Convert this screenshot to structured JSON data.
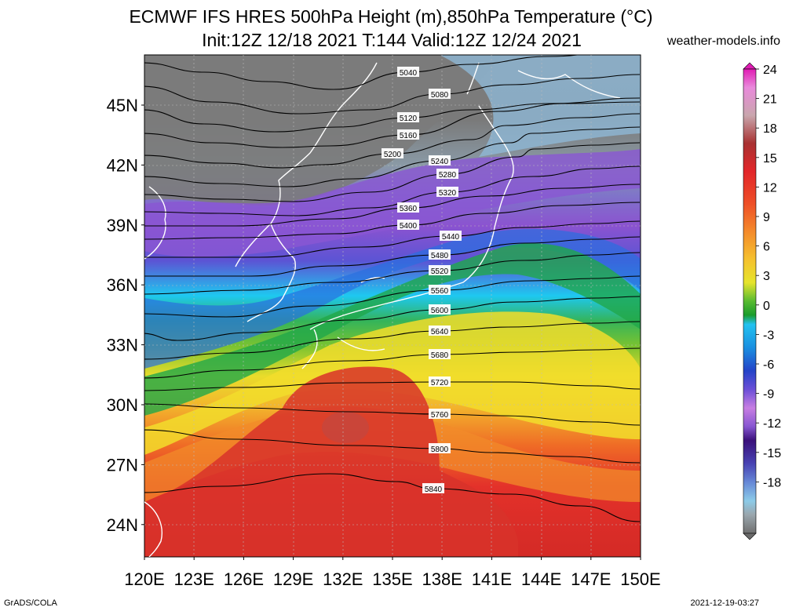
{
  "header": {
    "title_line1": "ECMWF IFS HRES 500hPa Height (m),850hPa Temperature (°C)",
    "title_line2": "Init:12Z 12/18 2021 T:144 Valid:12Z 12/24 2021",
    "site": "weather-models.info"
  },
  "footer": {
    "left": "GrADS/COLA",
    "right": "2021-12-19-03:27"
  },
  "map": {
    "lat_labels": [
      "45N",
      "42N",
      "39N",
      "36N",
      "33N",
      "30N",
      "27N",
      "24N"
    ],
    "lon_labels": [
      "120E",
      "123E",
      "126E",
      "129E",
      "132E",
      "135E",
      "138E",
      "141E",
      "144E",
      "147E",
      "150E"
    ],
    "contours": [
      {
        "value": "5040",
        "points": [
          [
            180,
            80
          ],
          [
            260,
            92
          ],
          [
            340,
            104
          ],
          [
            425,
            114
          ],
          [
            520,
            92
          ],
          [
            600,
            82
          ],
          [
            700,
            72
          ],
          [
            815,
            60
          ]
        ]
      },
      {
        "value": "5080",
        "points": [
          [
            180,
            110
          ],
          [
            270,
            130
          ],
          [
            380,
            145
          ],
          [
            470,
            140
          ],
          [
            560,
            120
          ],
          [
            650,
            108
          ],
          [
            740,
            100
          ],
          [
            815,
            95
          ]
        ]
      },
      {
        "value": "5120",
        "points": [
          [
            180,
            140
          ],
          [
            260,
            158
          ],
          [
            350,
            168
          ],
          [
            430,
            162
          ],
          [
            520,
            150
          ],
          [
            600,
            140
          ],
          [
            700,
            132
          ],
          [
            815,
            125
          ]
        ]
      },
      {
        "value": "5160",
        "points": [
          [
            180,
            170
          ],
          [
            270,
            182
          ],
          [
            360,
            188
          ],
          [
            420,
            186
          ],
          [
            520,
            172
          ],
          [
            635,
            142
          ],
          [
            720,
            132
          ],
          [
            815,
            130
          ]
        ]
      },
      {
        "value": "5200",
        "points": [
          [
            180,
            198
          ],
          [
            280,
            208
          ],
          [
            360,
            214
          ],
          [
            410,
            210
          ],
          [
            500,
            196
          ],
          [
            600,
            178
          ],
          [
            645,
            160
          ],
          [
            740,
            150
          ],
          [
            815,
            145
          ]
        ]
      },
      {
        "value": "5240",
        "points": [
          [
            180,
            225
          ],
          [
            280,
            234
          ],
          [
            365,
            238
          ],
          [
            450,
            228
          ],
          [
            560,
            205
          ],
          [
            650,
            182
          ],
          [
            678,
            170
          ],
          [
            760,
            165
          ],
          [
            815,
            162
          ]
        ]
      },
      {
        "value": "5280",
        "points": [
          [
            180,
            248
          ],
          [
            290,
            254
          ],
          [
            372,
            257
          ],
          [
            470,
            245
          ],
          [
            570,
            222
          ],
          [
            660,
            200
          ],
          [
            680,
            190
          ],
          [
            760,
            185
          ],
          [
            815,
            182
          ]
        ]
      },
      {
        "value": "5320",
        "points": [
          [
            180,
            270
          ],
          [
            280,
            272
          ],
          [
            374,
            275
          ],
          [
            470,
            265
          ],
          [
            570,
            245
          ],
          [
            680,
            225
          ],
          [
            760,
            215
          ],
          [
            815,
            212
          ]
        ]
      },
      {
        "value": "5360",
        "points": [
          [
            180,
            288
          ],
          [
            300,
            288
          ],
          [
            426,
            279
          ],
          [
            520,
            265
          ],
          [
            620,
            250
          ],
          [
            720,
            240
          ],
          [
            815,
            235
          ]
        ]
      },
      {
        "value": "5400",
        "points": [
          [
            180,
            305
          ],
          [
            300,
            303
          ],
          [
            426,
            298
          ],
          [
            520,
            287
          ],
          [
            620,
            272
          ],
          [
            720,
            262
          ],
          [
            815,
            258
          ]
        ]
      },
      {
        "value": "5440",
        "points": [
          [
            180,
            328
          ],
          [
            330,
            328
          ],
          [
            460,
            315
          ],
          [
            574,
            301
          ],
          [
            670,
            290
          ],
          [
            760,
            285
          ],
          [
            815,
            282
          ]
        ]
      },
      {
        "value": "5480",
        "points": [
          [
            180,
            352
          ],
          [
            320,
            352
          ],
          [
            426,
            339
          ],
          [
            560,
            325
          ],
          [
            670,
            310
          ],
          [
            760,
            305
          ],
          [
            815,
            302
          ]
        ]
      },
      {
        "value": "5520",
        "points": [
          [
            180,
            375
          ],
          [
            310,
            370
          ],
          [
            426,
            360
          ],
          [
            560,
            345
          ],
          [
            668,
            332
          ],
          [
            760,
            325
          ],
          [
            815,
            322
          ]
        ]
      },
      {
        "value": "5560",
        "points": [
          [
            180,
            400
          ],
          [
            288,
            404
          ],
          [
            400,
            390
          ],
          [
            560,
            370
          ],
          [
            678,
            358
          ],
          [
            760,
            355
          ],
          [
            815,
            352
          ]
        ]
      },
      {
        "value": "5600",
        "points": [
          [
            180,
            425
          ],
          [
            226,
            434
          ],
          [
            320,
            424
          ],
          [
            450,
            408
          ],
          [
            560,
            395
          ],
          [
            658,
            385
          ],
          [
            760,
            380
          ],
          [
            815,
            378
          ]
        ]
      },
      {
        "value": "5640",
        "points": [
          [
            180,
            458
          ],
          [
            300,
            450
          ],
          [
            450,
            432
          ],
          [
            560,
            422
          ],
          [
            647,
            417
          ],
          [
            760,
            412
          ],
          [
            815,
            410
          ]
        ]
      },
      {
        "value": "5680",
        "points": [
          [
            180,
            482
          ],
          [
            300,
            472
          ],
          [
            450,
            460
          ],
          [
            560,
            452
          ],
          [
            664,
            449
          ],
          [
            760,
            446
          ],
          [
            815,
            444
          ]
        ]
      },
      {
        "value": "5720",
        "points": [
          [
            180,
            498
          ],
          [
            300,
            494
          ],
          [
            450,
            488
          ],
          [
            560,
            487
          ],
          [
            648,
            487
          ],
          [
            760,
            492
          ],
          [
            815,
            496
          ]
        ]
      },
      {
        "value": "5760",
        "points": [
          [
            180,
            515
          ],
          [
            300,
            520
          ],
          [
            450,
            525
          ],
          [
            560,
            528
          ],
          [
            637,
            530
          ],
          [
            760,
            538
          ],
          [
            815,
            542
          ]
        ]
      },
      {
        "value": "5800",
        "points": [
          [
            180,
            548
          ],
          [
            300,
            560
          ],
          [
            450,
            568
          ],
          [
            560,
            572
          ],
          [
            627,
            577
          ],
          [
            720,
            582
          ],
          [
            815,
            590
          ]
        ]
      },
      {
        "value": "5840",
        "points": [
          [
            180,
            628
          ],
          [
            280,
            620
          ],
          [
            420,
            604
          ],
          [
            505,
            614
          ],
          [
            552,
            623
          ],
          [
            650,
            630
          ],
          [
            740,
            645
          ],
          [
            815,
            665
          ]
        ]
      }
    ]
  },
  "colorbar": {
    "labels": [
      "24",
      "21",
      "18",
      "15",
      "12",
      "9",
      "6",
      "3",
      "0",
      "-3",
      "-6",
      "-9",
      "-12",
      "-15",
      "-18"
    ],
    "colors": [
      "#d91fb6",
      "#e36fd4",
      "#bcbcbc",
      "#ad2127",
      "#e2262a",
      "#ef5a2a",
      "#f4862c",
      "#f6b02e",
      "#f2e32e",
      "#c0dc2a",
      "#6cc232",
      "#1f9a2b",
      "#2bb3ea",
      "#1874d3",
      "#2431bf",
      "#7c3ed3",
      "#b86fe0",
      "#9160d3",
      "#3d147d",
      "#4b3caf",
      "#5f6fd0",
      "#6a9cd8",
      "#8fc7e6",
      "#94a8b2",
      "#6c6c6c"
    ]
  }
}
